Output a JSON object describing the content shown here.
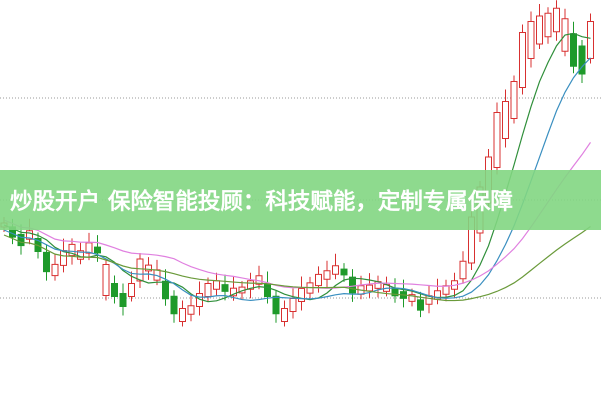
{
  "banner": {
    "title": "炒股开户 保险智能投顾：科技赋能，定制专属保障"
  },
  "colors": {
    "up": "#d83030",
    "down": "#1e9a2a",
    "banner": "#82d682",
    "ma_green": "#2f8f3a",
    "ma_blue": "#3a8fc0",
    "ma_pink": "#e080e0",
    "ma_olive": "#6a9a3a"
  }
}
